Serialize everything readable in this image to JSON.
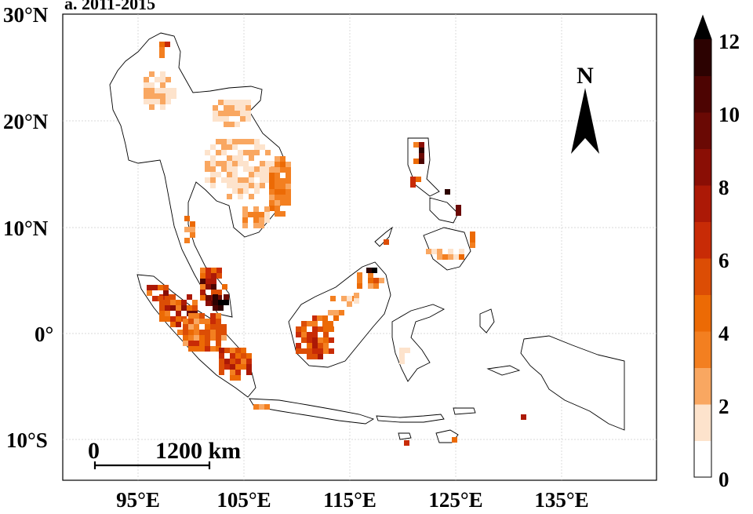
{
  "map": {
    "panel_title": "a. 2011-2015",
    "lat_labels": [
      "30°N",
      "20°N",
      "10°N",
      "0°",
      "10°S"
    ],
    "lon_labels": [
      "95°E",
      "105°E",
      "115°E",
      "125°E",
      "135°E"
    ],
    "north_arrow_label": "N",
    "scale_bar": {
      "start_label": "0",
      "end_label": "1200 km"
    }
  },
  "legend": {
    "tick_labels": [
      "0",
      "2",
      "4",
      "6",
      "8",
      "10",
      "12"
    ],
    "extend": "max",
    "colors": [
      "#ffffff",
      "#fde3cc",
      "#f9a761",
      "#f37f20",
      "#ec6a05",
      "#dc4d05",
      "#c82b06",
      "#ac1906",
      "#8a0e05",
      "#6a0904",
      "#4d0402",
      "#2c0201",
      "#000000"
    ]
  },
  "colors": {
    "land_outline": "#000000",
    "grid": "#cccccc",
    "background": "#ffffff"
  }
}
